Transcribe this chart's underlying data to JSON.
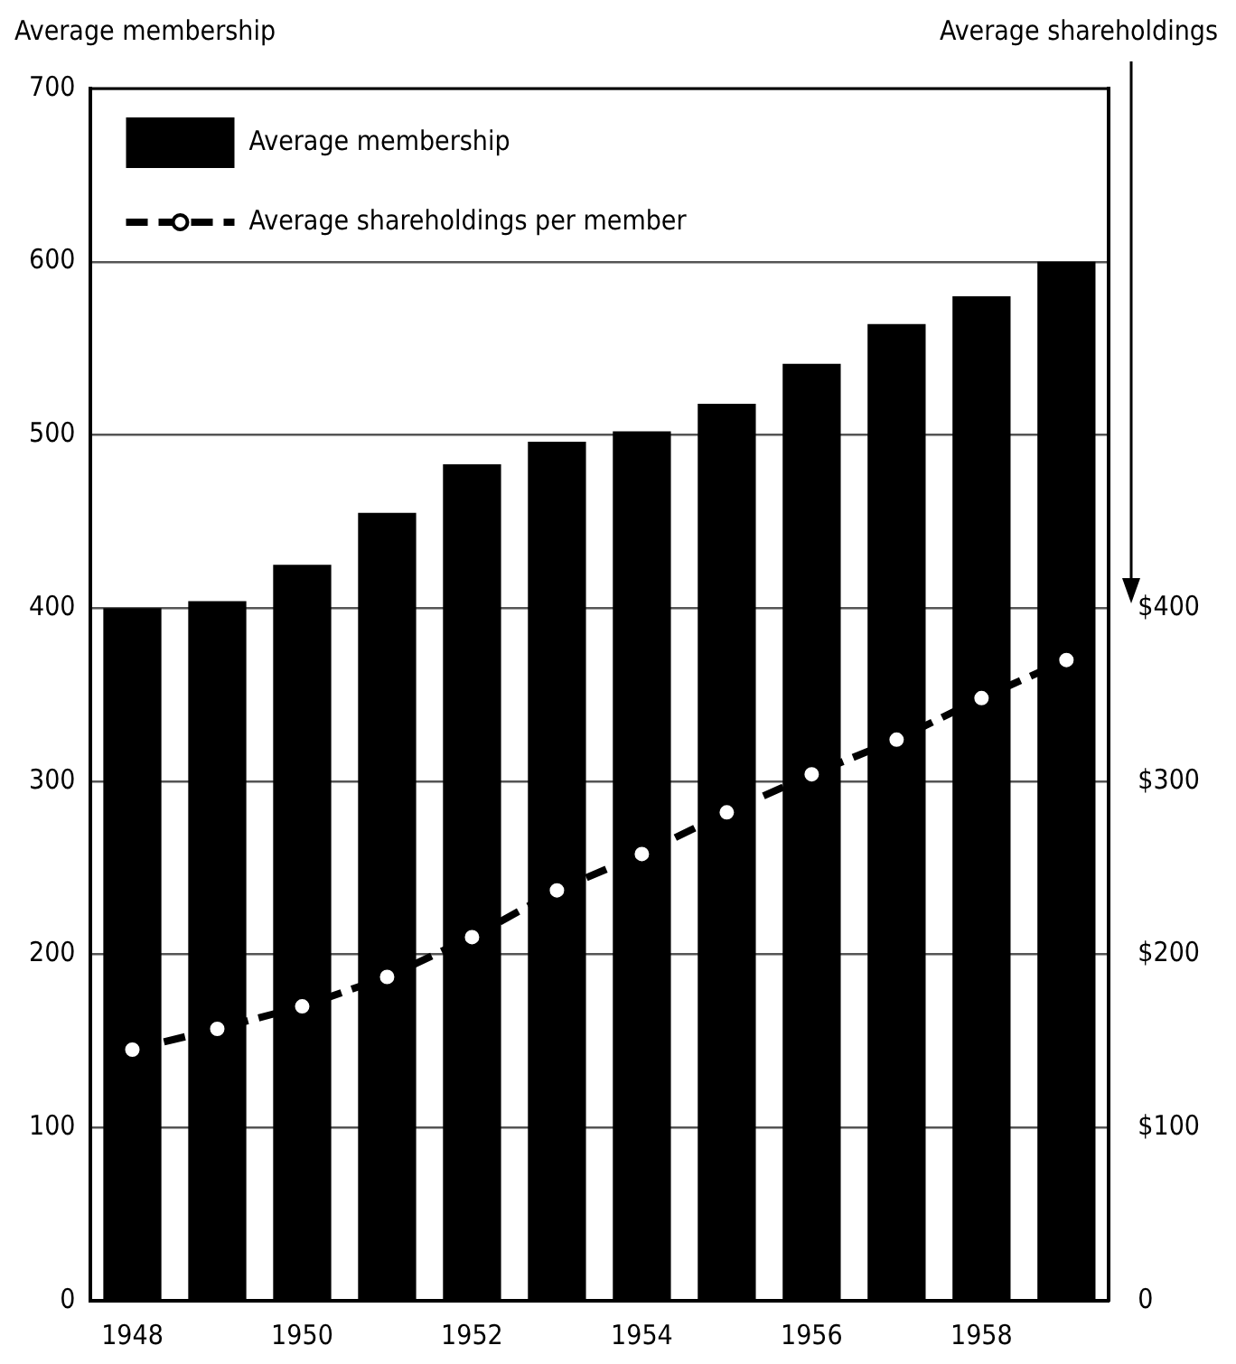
{
  "chart_data": {
    "type": "bar",
    "ylabel": "Average membership",
    "y2label": "Average shareholdings",
    "categories": [
      "1948",
      null,
      "1950",
      null,
      "1952",
      null,
      "1954",
      null,
      "1956",
      null,
      "1958",
      null
    ],
    "series": [
      {
        "name": "Average membership",
        "color": "#000000",
        "values": [
          400,
          404,
          425,
          455,
          483,
          496,
          502,
          518,
          541,
          564,
          580,
          600
        ]
      },
      {
        "name": "Average shareholdings per member",
        "type": "line",
        "axis": "y2",
        "color": "#000000",
        "marker": "circle",
        "line_style": "dashed",
        "values": [
          145,
          157,
          170,
          187,
          210,
          237,
          258,
          282,
          304,
          324,
          348,
          370
        ]
      }
    ],
    "ylim": [
      0,
      700
    ],
    "yticks": [
      0,
      100,
      200,
      300,
      400,
      500,
      600,
      700
    ],
    "y2lim": [
      0,
      700
    ],
    "y2ticks": [
      {
        "value": 0,
        "label": "0"
      },
      {
        "value": 100,
        "label": "$100"
      },
      {
        "value": 200,
        "label": "$200"
      },
      {
        "value": 300,
        "label": "$300"
      },
      {
        "value": 400,
        "label": "$400"
      }
    ],
    "grid": "y",
    "legend": "top left"
  }
}
